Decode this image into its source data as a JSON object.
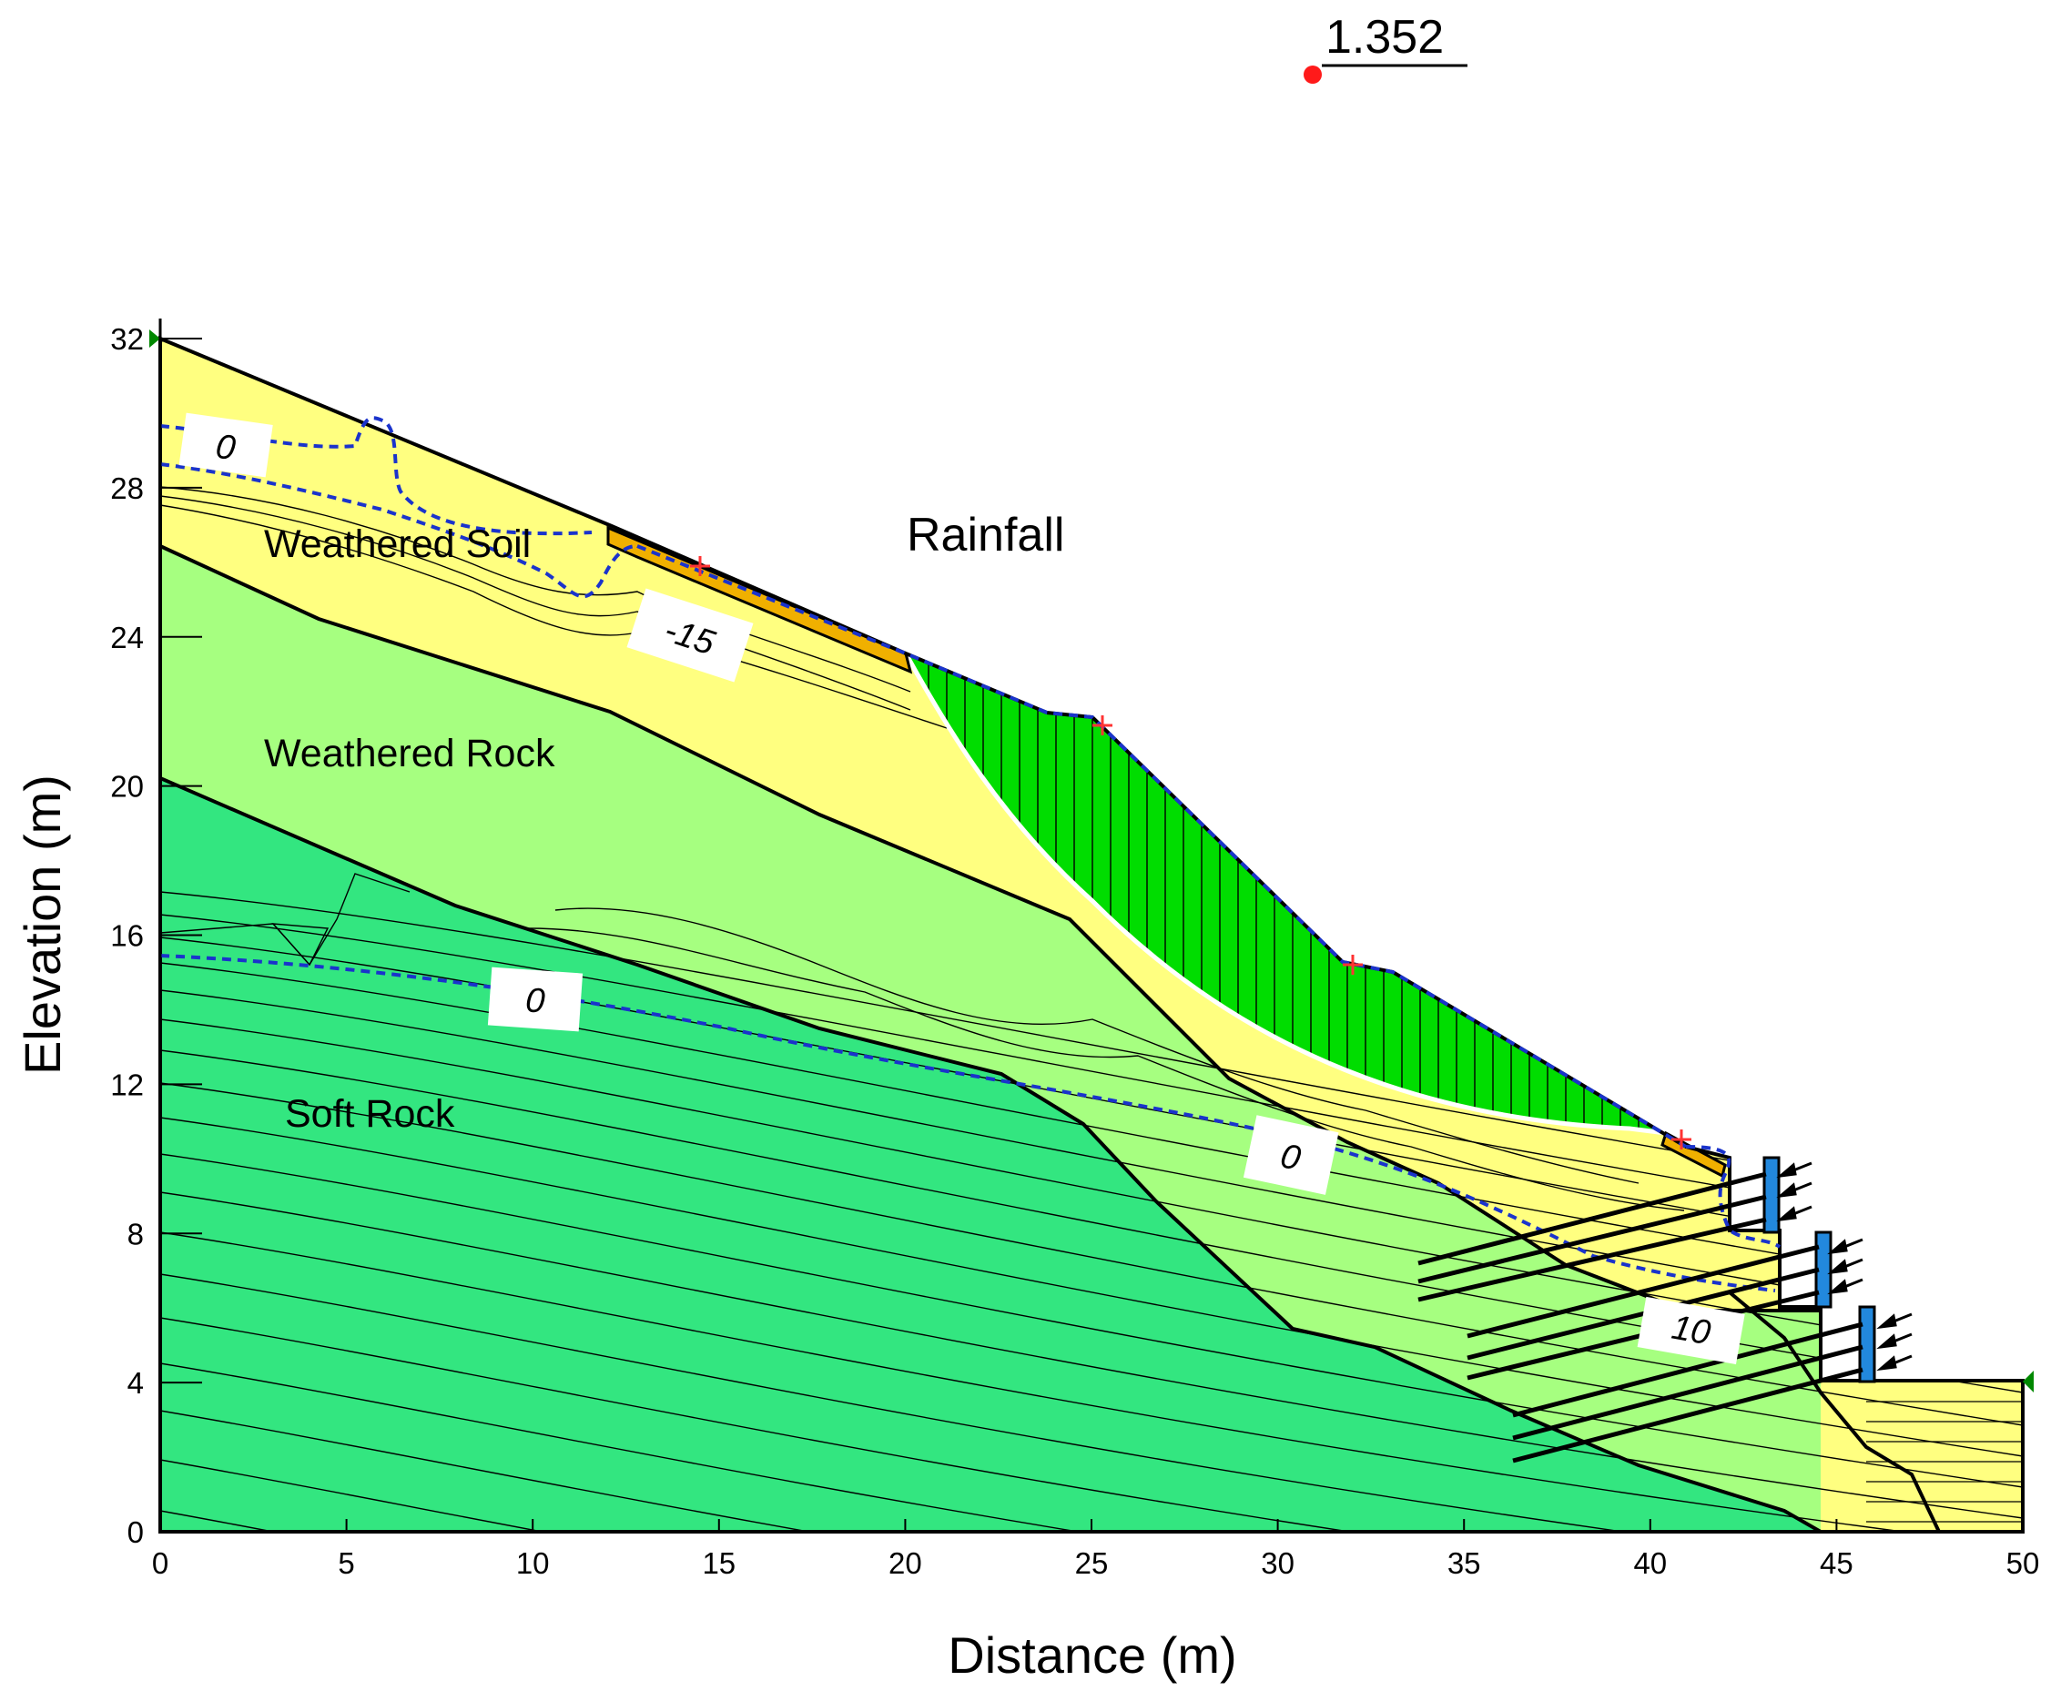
{
  "factor_of_safety": {
    "value": "1.352",
    "marker_color": "#ff1a1a"
  },
  "annotation": {
    "rainfall": "Rainfall"
  },
  "layers": [
    {
      "name": "Weathered Soil",
      "color": "#ffff80"
    },
    {
      "name": "Weathered Rock",
      "color": "#a6ff80"
    },
    {
      "name": "Soft Rock",
      "color": "#33e680"
    }
  ],
  "slip_mass_color": "#00dd00",
  "shotcrete_color": "#f0b000",
  "water_table_color": "#1a33cc",
  "contour_labels": {
    "c1": "0",
    "c2": "-15",
    "c3": "0",
    "c4": "0",
    "c5": "10"
  },
  "x_axis": {
    "label": "Distance (m)",
    "ticks": [
      "0",
      "5",
      "10",
      "15",
      "20",
      "25",
      "30",
      "35",
      "40",
      "45",
      "50"
    ]
  },
  "y_axis": {
    "label": "Elevation (m)",
    "ticks": [
      "0",
      "4",
      "8",
      "12",
      "16",
      "20",
      "24",
      "28",
      "32"
    ]
  },
  "icons": {
    "boundary_marker": "green-triangle-icon",
    "anchor_load": "arrow-icon",
    "slip_point": "cross-icon"
  }
}
